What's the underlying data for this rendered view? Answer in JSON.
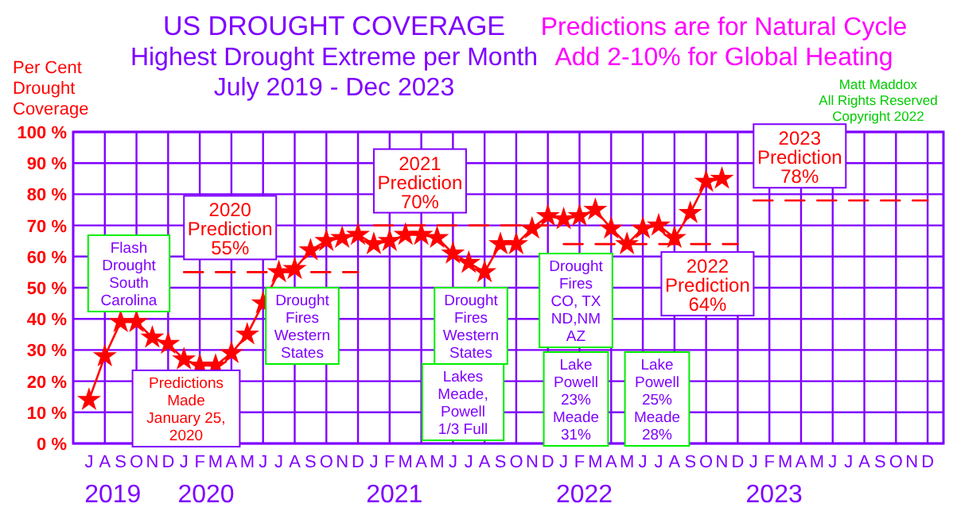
{
  "chart_data": {
    "type": "line",
    "title": "US DROUGHT COVERAGE",
    "subtitle": "Highest Drought Extreme per Month\nJuly 2019 - Dec 2023",
    "ylabel": "Per Cent\nDrought\nCoverage",
    "annotations": [
      "Predictions are for Natural Cycle\nAdd 2-10% for Global Heating",
      "Matt Maddox\nAll Rights Reserved\nCopyright 2022",
      "Flash\nDrought\nSouth\nCarolina",
      "Predictions\nMade\nJanuary 25,\n2020",
      "Drought\nFires\nWestern\nStates",
      "Drought\nFires\nWestern\nStates",
      "Lakes\nMeade,\nPowell\n1/3 Full",
      "Drought\nFires\nCO, TX\nND,NM\nAZ",
      "Lake\nPowell\n23%\nMeade\n31%",
      "Lake\nPowell\n25%\nMeade\n28%",
      "2019",
      "2020",
      "2021",
      "2022",
      "2023"
    ],
    "categories": [
      "J",
      "A",
      "S",
      "O",
      "N",
      "D",
      "J",
      "F",
      "M",
      "A",
      "M",
      "J",
      "J",
      "A",
      "S",
      "O",
      "N",
      "D",
      "J",
      "F",
      "M",
      "A",
      "M",
      "J",
      "J",
      "A",
      "S",
      "O",
      "N",
      "D",
      "J",
      "F",
      "M",
      "A",
      "M",
      "J",
      "J",
      "A",
      "S",
      "O",
      "N",
      "D",
      "J",
      "F",
      "M",
      "A",
      "M",
      "J",
      "J",
      "A",
      "S",
      "O",
      "N",
      "D"
    ],
    "series": [
      {
        "color": "#ff0000",
        "marker": "star",
        "line_style": "solid",
        "values": [
          14,
          28,
          39,
          39,
          34,
          32,
          27,
          25,
          25,
          29,
          35,
          45,
          55,
          56,
          62,
          65,
          66,
          67,
          64,
          65,
          67,
          67,
          66,
          61,
          58,
          55,
          64,
          64,
          69,
          73,
          72,
          73,
          75,
          69,
          64,
          69,
          70,
          66,
          74,
          84,
          85,
          null,
          null,
          null,
          null,
          null,
          null,
          null,
          null,
          null,
          null,
          null,
          null,
          null
        ]
      },
      {
        "name": "2020\nPrediction\n55%",
        "color": "#ff0000",
        "marker": "none",
        "line_style": "dashed",
        "values": [
          null,
          null,
          null,
          null,
          null,
          null,
          55,
          55,
          55,
          55,
          55,
          55,
          55,
          55,
          55,
          55,
          55,
          55,
          null,
          null,
          null,
          null,
          null,
          null,
          null,
          null,
          null,
          null,
          null,
          null,
          null,
          null,
          null,
          null,
          null,
          null,
          null,
          null,
          null,
          null,
          null,
          null,
          null,
          null,
          null,
          null,
          null,
          null,
          null,
          null,
          null,
          null,
          null,
          null
        ]
      },
      {
        "name": "2021\nPrediction\n70%",
        "color": "#ff0000",
        "marker": "none",
        "line_style": "dashed",
        "values": [
          null,
          null,
          null,
          null,
          null,
          null,
          null,
          null,
          null,
          null,
          null,
          null,
          null,
          null,
          null,
          null,
          null,
          null,
          70,
          70,
          70,
          70,
          70,
          70,
          70,
          70,
          70,
          70,
          70,
          70,
          null,
          null,
          null,
          null,
          null,
          null,
          null,
          null,
          null,
          null,
          null,
          null,
          null,
          null,
          null,
          null,
          null,
          null,
          null,
          null,
          null,
          null,
          null,
          null
        ]
      },
      {
        "name": "2022\nPrediction\n64%",
        "color": "#ff0000",
        "marker": "none",
        "line_style": "dashed",
        "values": [
          null,
          null,
          null,
          null,
          null,
          null,
          null,
          null,
          null,
          null,
          null,
          null,
          null,
          null,
          null,
          null,
          null,
          null,
          null,
          null,
          null,
          null,
          null,
          null,
          null,
          null,
          null,
          null,
          null,
          null,
          64,
          64,
          64,
          64,
          64,
          64,
          64,
          64,
          64,
          64,
          64,
          64,
          null,
          null,
          null,
          null,
          null,
          null,
          null,
          null,
          null,
          null,
          null,
          null
        ]
      },
      {
        "name": "2023\nPrediction\n78%",
        "color": "#ff0000",
        "marker": "none",
        "line_style": "dashed",
        "values": [
          null,
          null,
          null,
          null,
          null,
          null,
          null,
          null,
          null,
          null,
          null,
          null,
          null,
          null,
          null,
          null,
          null,
          null,
          null,
          null,
          null,
          null,
          null,
          null,
          null,
          null,
          null,
          null,
          null,
          null,
          null,
          null,
          null,
          null,
          null,
          null,
          null,
          null,
          null,
          null,
          null,
          null,
          78,
          78,
          78,
          78,
          78,
          78,
          78,
          78,
          78,
          78,
          78,
          78
        ]
      }
    ],
    "ylim": [
      0,
      100
    ],
    "yticks": [
      {
        "value": 0,
        "label": "0 %"
      },
      {
        "value": 10,
        "label": "10 %"
      },
      {
        "value": 20,
        "label": "20 %"
      },
      {
        "value": 30,
        "label": "30 %"
      },
      {
        "value": 40,
        "label": "40 %"
      },
      {
        "value": 50,
        "label": "50 %"
      },
      {
        "value": 60,
        "label": "60 %"
      },
      {
        "value": 70,
        "label": "70 %"
      },
      {
        "value": 80,
        "label": "80 %"
      },
      {
        "value": 90,
        "label": "90 %"
      },
      {
        "value": 100,
        "label": "100 %"
      }
    ],
    "grid": true
  }
}
